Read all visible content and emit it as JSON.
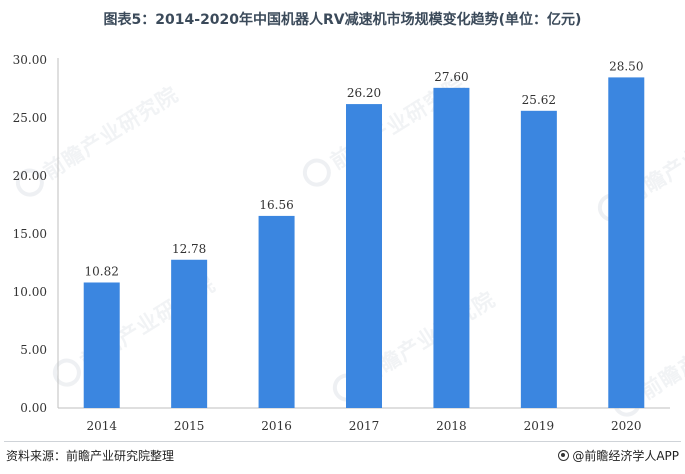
{
  "title": "图表5：2014-2020年中国机器人RV减速机市场规模变化趋势(单位：亿元)",
  "source": "资料来源：前瞻产业研究院整理",
  "brand": "@前瞻经济学人APP",
  "watermark": "前瞻产业研究院",
  "chart_data": {
    "type": "bar",
    "title": "图表5：2014-2020年中国机器人RV减速机市场规模变化趋势(单位：亿元)",
    "xlabel": "",
    "ylabel": "",
    "categories": [
      "2014",
      "2015",
      "2016",
      "2017",
      "2018",
      "2019",
      "2020"
    ],
    "values": [
      10.82,
      12.78,
      16.56,
      26.2,
      27.6,
      25.62,
      28.5
    ],
    "value_labels": [
      "10.82",
      "12.78",
      "16.56",
      "26.20",
      "27.60",
      "25.62",
      "28.50"
    ],
    "ylim": [
      0,
      30
    ],
    "yticks": [
      "0.00",
      "5.00",
      "10.00",
      "15.00",
      "20.00",
      "25.00",
      "30.00"
    ],
    "grid": false,
    "legend": "none",
    "bar_color": "#3b86e0"
  }
}
